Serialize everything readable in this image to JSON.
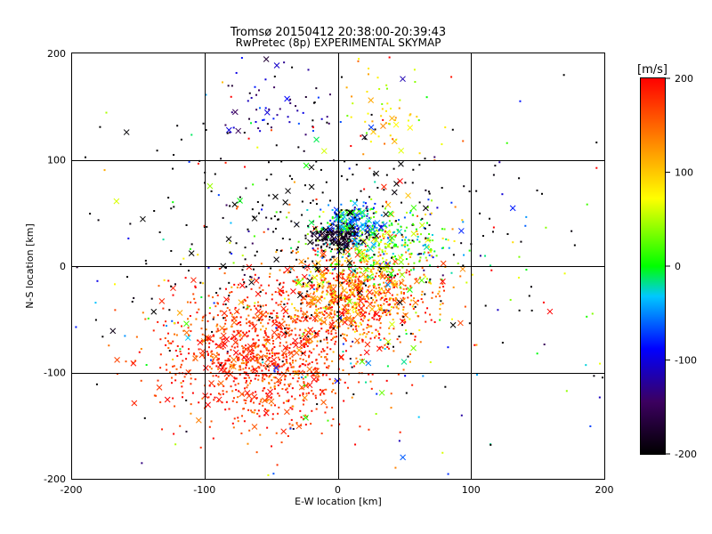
{
  "chart_data": {
    "type": "scatter",
    "title": "Tromsø 20150412 20:38:00-20:39:43",
    "subtitle": "RwPretec (8p) EXPERIMENTAL SKYMAP",
    "xlabel": "E-W location [km]",
    "ylabel": "N-S location [km]",
    "xlim": [
      -200,
      200
    ],
    "ylim": [
      -200,
      200
    ],
    "x_ticks": [
      -200,
      -100,
      0,
      100,
      200
    ],
    "y_ticks": [
      -200,
      -100,
      0,
      100,
      200
    ],
    "grid": true,
    "colorbar": {
      "label": "[m/s]",
      "range": [
        -200,
        200
      ],
      "ticks": [
        200,
        100,
        0,
        -100,
        -200
      ],
      "colors": [
        "#000000",
        "#3c0060",
        "#0000ff",
        "#00c8ff",
        "#00ff00",
        "#ffff00",
        "#ff7f00",
        "#ff0000"
      ]
    },
    "clusters": [
      {
        "label": "south-west red echoes",
        "cx": -55,
        "cy": -85,
        "sx": 38,
        "sy": 32,
        "n": 1100,
        "vmean": 175,
        "vsd": 25
      },
      {
        "label": "central red echoes",
        "cx": 15,
        "cy": -25,
        "sx": 28,
        "sy": 22,
        "n": 800,
        "vmean": 150,
        "vsd": 45
      },
      {
        "label": "central green echoes",
        "cx": 30,
        "cy": 20,
        "sx": 25,
        "sy": 18,
        "n": 350,
        "vmean": 20,
        "vsd": 45
      },
      {
        "label": "dark echoes near origin",
        "cx": 0,
        "cy": 28,
        "sx": 10,
        "sy": 6,
        "n": 170,
        "vmean": -185,
        "vsd": 12
      },
      {
        "label": "blue/cyan echoes near origin",
        "cx": 10,
        "cy": 42,
        "sx": 14,
        "sy": 8,
        "n": 180,
        "vmean": -40,
        "vsd": 45
      },
      {
        "label": "north-west blue echoes",
        "cx": -50,
        "cy": 150,
        "sx": 22,
        "sy": 20,
        "n": 60,
        "vmean": -120,
        "vsd": 40
      },
      {
        "label": "north-east yellow/green echoes",
        "cx": 40,
        "cy": 140,
        "sx": 18,
        "sy": 25,
        "n": 55,
        "vmean": 90,
        "vsd": 30
      },
      {
        "label": "scattered black echoes",
        "cx": -20,
        "cy": 20,
        "sx": 80,
        "sy": 60,
        "n": 300,
        "vmean": -200,
        "vsd": 5
      },
      {
        "label": "background scatter",
        "cx": 0,
        "cy": 0,
        "sx": 100,
        "sy": 90,
        "n": 350,
        "vmean": 0,
        "vsd": 150
      }
    ]
  }
}
